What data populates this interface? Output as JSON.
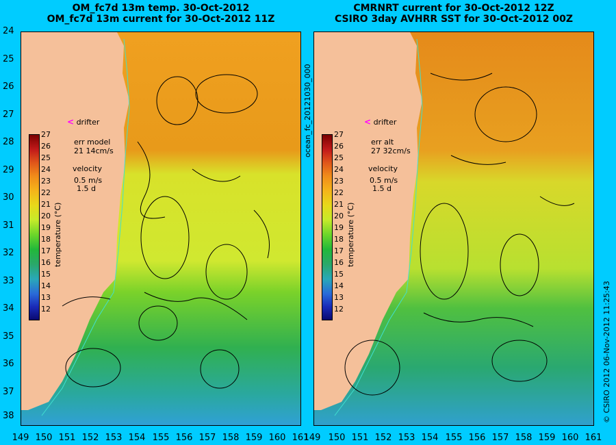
{
  "left_panel": {
    "title_line1": "OM_fc7d 13m temp. 30-Oct-2012",
    "title_line2": "OM_fc7d 13m current for 30-Oct-2012 11Z",
    "drifter_label": "drifter",
    "err_label": "err model",
    "err_value": "21 14cm/s",
    "velocity_label": "velocity",
    "velocity_scale": "0.5 m/s",
    "velocity_days": "1.5 d",
    "colorbar_title": "temperature (°C)"
  },
  "right_panel": {
    "title_line1": "CMRNRT current for 30-Oct-2012 12Z",
    "title_line2": "CSIRO 3day AVHRR SST for 30-Oct-2012 00Z",
    "drifter_label": "drifter",
    "err_label": "err alt",
    "err_value": "27 32cm/s",
    "velocity_label": "velocity",
    "velocity_scale": "0.5 m/s",
    "velocity_days": "1.5 d",
    "colorbar_title": "temperature (°C)"
  },
  "middle_side_label": "ocean_fc_20121030_000",
  "right_side_label": "© CSIRO 2012    06-Nov-2012 11:25:43",
  "y_axis_ticks": [
    "24",
    "25",
    "26",
    "27",
    "28",
    "29",
    "30",
    "31",
    "32",
    "33",
    "34",
    "35",
    "36",
    "37",
    "38"
  ],
  "x_axis_ticks": [
    "149",
    "150",
    "151",
    "152",
    "153",
    "154",
    "155",
    "156",
    "157",
    "158",
    "159",
    "160",
    "161"
  ],
  "colorbar_ticks": [
    "27",
    "26",
    "25",
    "24",
    "23",
    "22",
    "21",
    "20",
    "19",
    "18",
    "17",
    "16",
    "15",
    "14",
    "13",
    "12"
  ],
  "colors": {
    "background": "#00ccff",
    "land": "#f5c09a",
    "drifter": "#ff00ff"
  }
}
